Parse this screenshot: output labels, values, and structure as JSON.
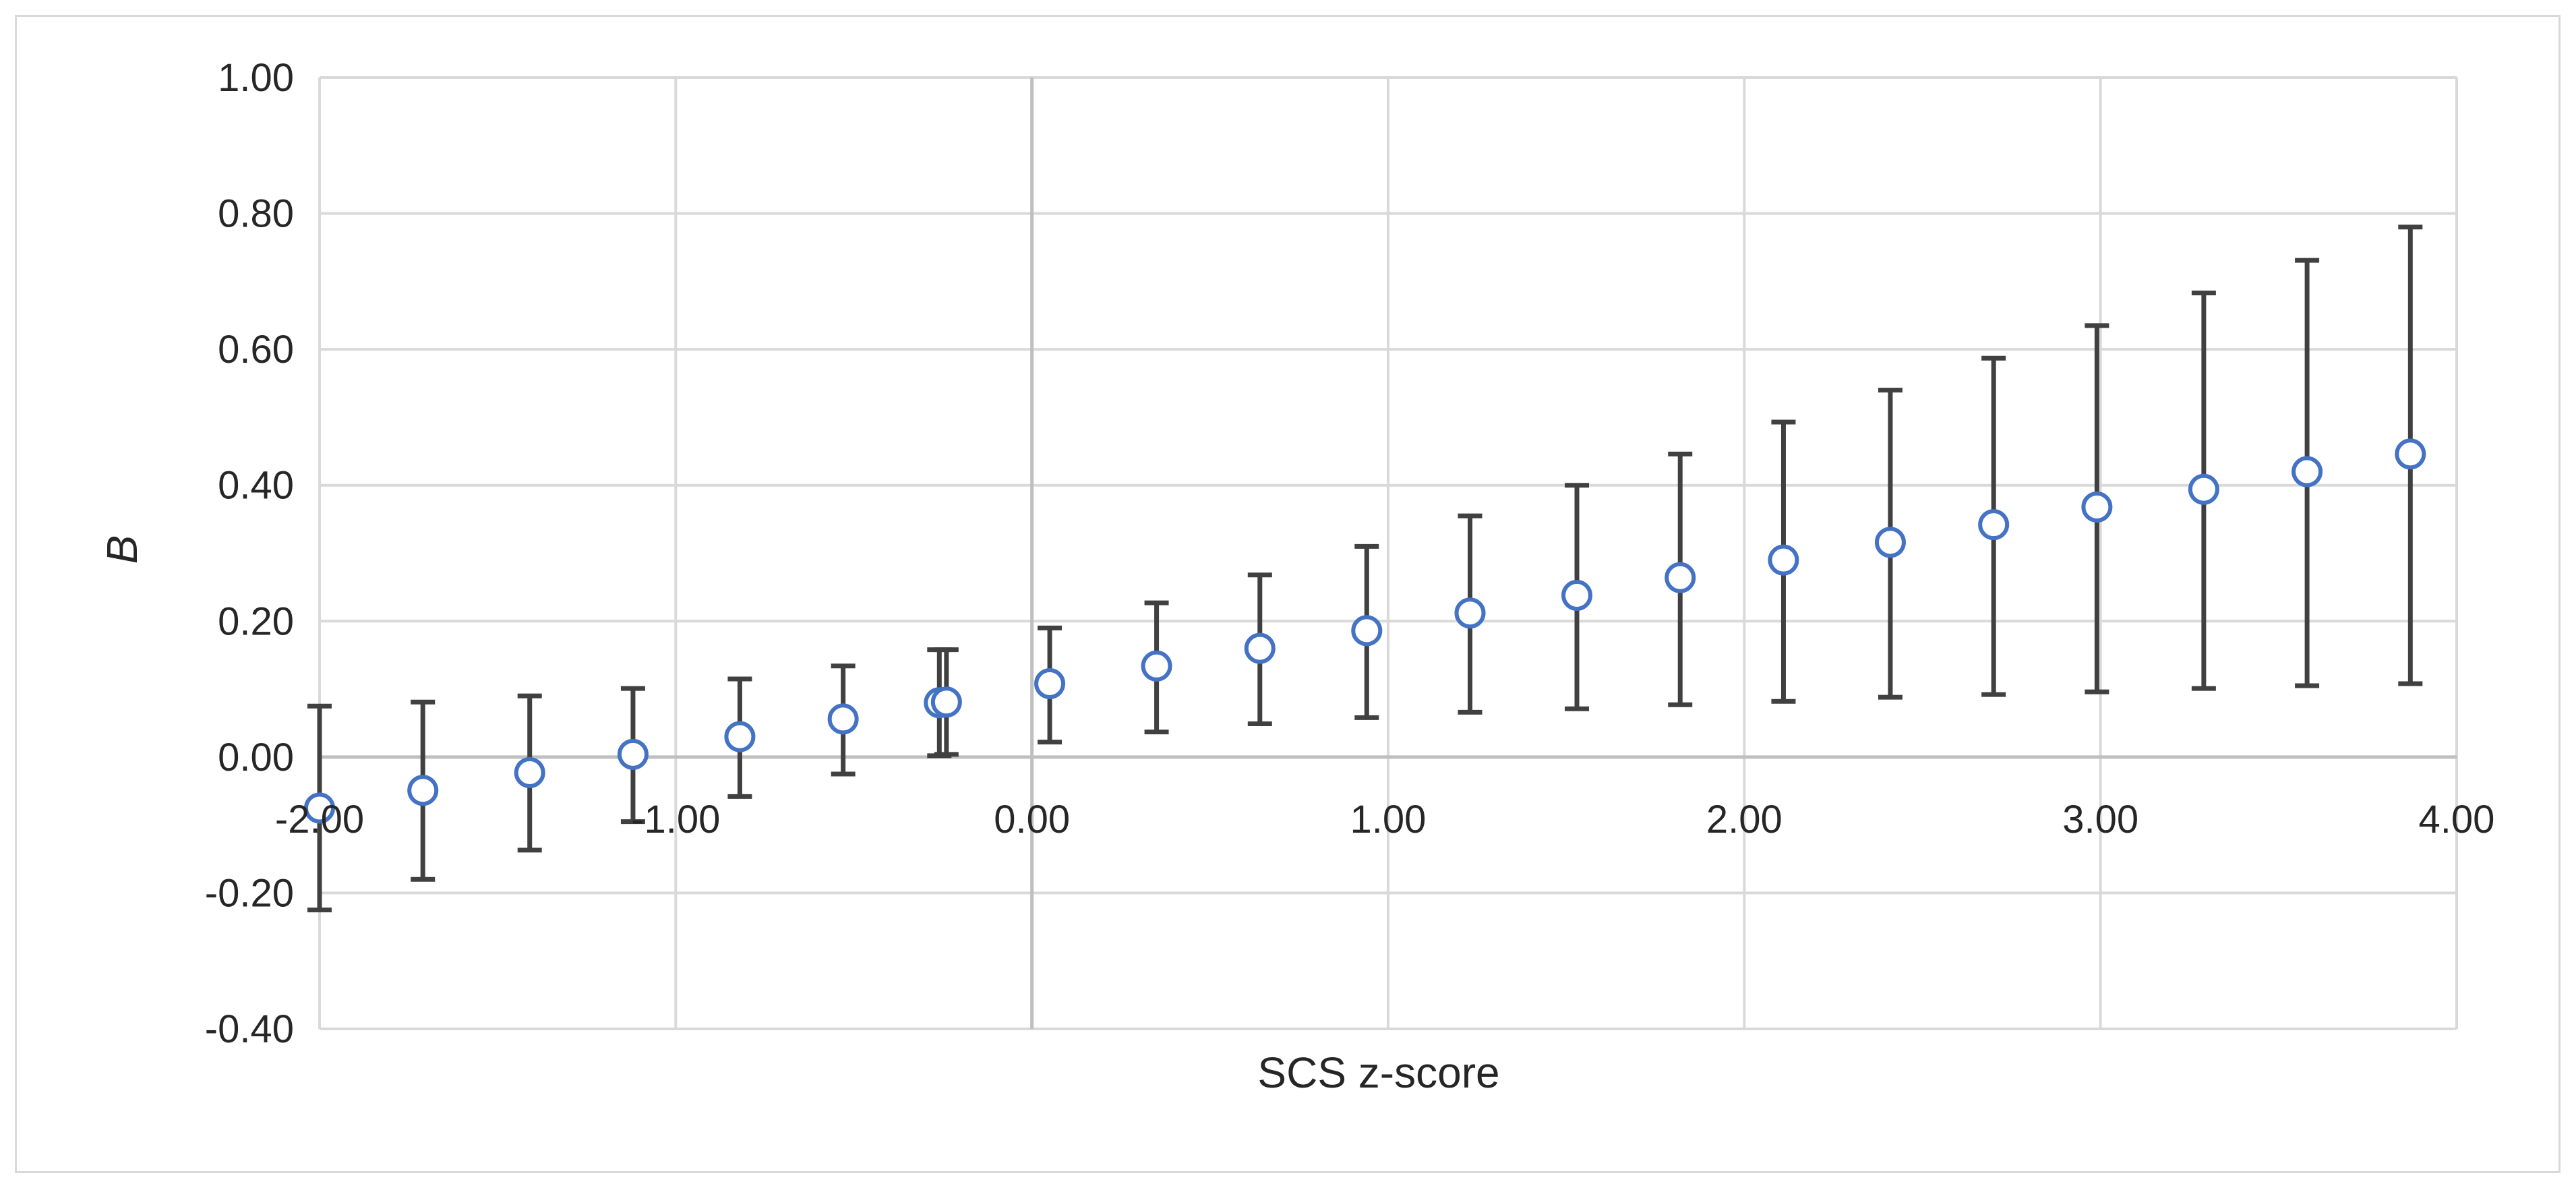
{
  "chart_data": {
    "type": "scatter",
    "title": "",
    "xlabel": "SCS z-score",
    "ylabel": "B",
    "xlim": [
      -2.0,
      4.0
    ],
    "ylim": [
      -0.4,
      1.0
    ],
    "x_ticks": [
      -2.0,
      -1.0,
      0.0,
      1.0,
      2.0,
      3.0,
      4.0
    ],
    "x_tick_labels": [
      "-2.00",
      "-1.00",
      "0.00",
      "1.00",
      "2.00",
      "3.00",
      "4.00"
    ],
    "y_ticks": [
      -0.4,
      -0.2,
      0.0,
      0.2,
      0.4,
      0.6,
      0.8,
      1.0
    ],
    "y_tick_labels": [
      "-0.40",
      "-0.20",
      "0.00",
      "0.20",
      "0.40",
      "0.60",
      "0.80",
      "1.00"
    ],
    "grid": true,
    "legend": "none",
    "colors": {
      "marker_edge": "#4472c4",
      "marker_fill": "#ffffff",
      "error_bar": "#404040",
      "grid": "#d9d9d9",
      "zero_line": "#bfbfbf"
    },
    "series": [
      {
        "x": [
          -2.0,
          -1.71,
          -1.41,
          -1.12,
          -0.82,
          -0.53,
          -0.26,
          -0.24,
          0.05,
          0.35,
          0.64,
          0.94,
          1.23,
          1.53,
          1.82,
          2.11,
          2.41,
          2.7,
          2.99,
          3.29,
          3.58,
          3.87
        ],
        "y": [
          -0.075,
          -0.049,
          -0.023,
          0.004,
          0.03,
          0.056,
          0.08,
          0.081,
          0.108,
          0.134,
          0.16,
          0.186,
          0.212,
          0.238,
          0.264,
          0.29,
          0.316,
          0.342,
          0.368,
          0.394,
          0.42,
          0.446
        ],
        "lower": [
          -0.225,
          -0.18,
          -0.137,
          -0.095,
          -0.058,
          -0.025,
          0.002,
          0.004,
          0.022,
          0.037,
          0.049,
          0.058,
          0.066,
          0.071,
          0.077,
          0.082,
          0.088,
          0.092,
          0.096,
          0.101,
          0.105,
          0.108
        ],
        "upper": [
          0.075,
          0.081,
          0.09,
          0.101,
          0.115,
          0.134,
          0.158,
          0.158,
          0.19,
          0.227,
          0.268,
          0.31,
          0.355,
          0.4,
          0.446,
          0.493,
          0.54,
          0.587,
          0.635,
          0.683,
          0.731,
          0.78
        ]
      }
    ]
  }
}
